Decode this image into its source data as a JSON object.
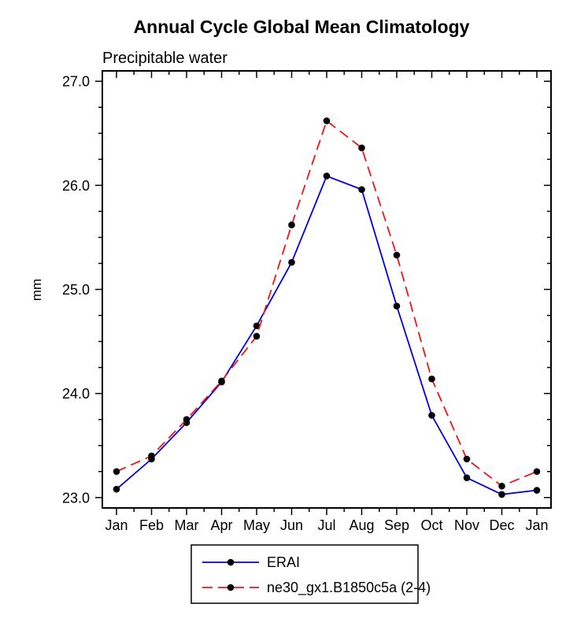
{
  "title": "Annual Cycle Global Mean Climatology",
  "subtitle": "Precipitable water",
  "chart_data": {
    "type": "line",
    "x": [
      "Jan",
      "Feb",
      "Mar",
      "Apr",
      "May",
      "Jun",
      "Jul",
      "Aug",
      "Sep",
      "Oct",
      "Nov",
      "Dec",
      "Jan"
    ],
    "ylabel": "mm",
    "ylim": [
      22.9,
      27.1
    ],
    "yticks": [
      23.0,
      24.0,
      25.0,
      26.0,
      27.0
    ],
    "y_minor_step": 0.25,
    "grid": false,
    "legend_position": "bottom-center",
    "marker": "filled-circle",
    "marker_color": "#000000",
    "series": [
      {
        "name": "ERAI",
        "color": "#0000dc",
        "style": "solid",
        "values": [
          23.08,
          23.37,
          23.72,
          24.11,
          24.65,
          25.26,
          26.09,
          25.96,
          24.84,
          23.79,
          23.19,
          23.03,
          23.07
        ]
      },
      {
        "name": "ne30_gx1.B1850c5a (2-4)",
        "color": "#f01414",
        "style": "dashed",
        "values": [
          23.25,
          23.4,
          23.75,
          24.12,
          24.55,
          25.62,
          26.62,
          26.36,
          25.33,
          24.14,
          23.37,
          23.11,
          23.25
        ]
      }
    ]
  }
}
